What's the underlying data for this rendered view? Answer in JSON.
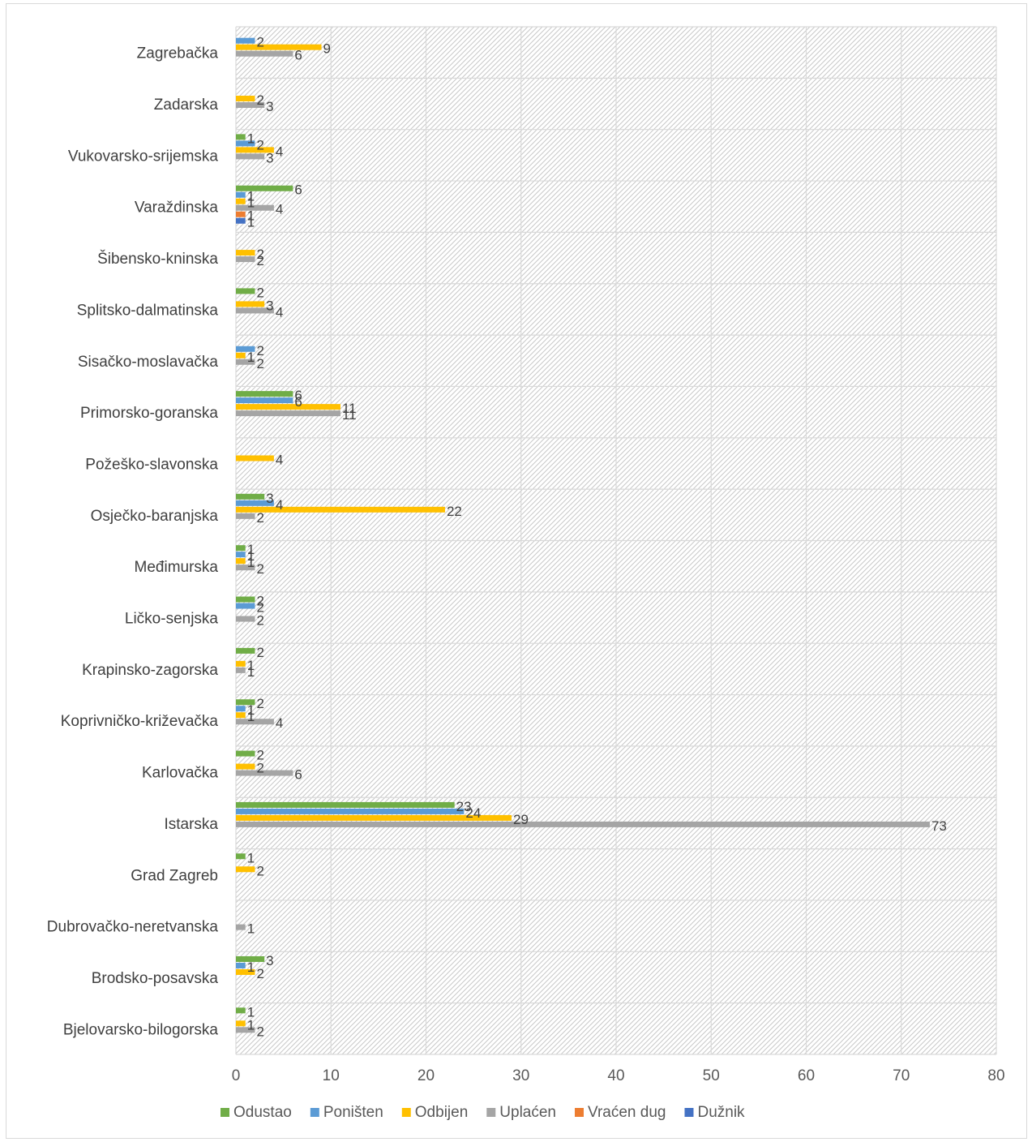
{
  "chart_data": {
    "type": "bar",
    "orientation": "horizontal",
    "title": "",
    "xlabel": "",
    "ylabel": "",
    "xlim": [
      0,
      80
    ],
    "x_ticks": [
      "0",
      "10",
      "20",
      "30",
      "40",
      "50",
      "60",
      "70",
      "80"
    ],
    "grid": true,
    "legend_position": "bottom",
    "categories": [
      "Zagrebačka",
      "Zadarska",
      "Vukovarsko-srijemska",
      "Varaždinska",
      "Šibensko-kninska",
      "Splitsko-dalmatinska",
      "Sisačko-moslavačka",
      "Primorsko-goranska",
      "Požeško-slavonska",
      "Osječko-baranjska",
      "Međimurska",
      "Ličko-senjska",
      "Krapinsko-zagorska",
      "Koprivničko-križevačka",
      "Karlovačka",
      "Istarska",
      "Grad Zagreb",
      "Dubrovačko-neretvanska",
      "Brodsko-posavska",
      "Bjelovarsko-bilogorska"
    ],
    "series": [
      {
        "name": "Odustao",
        "color": "#70ad47",
        "values": [
          null,
          null,
          1,
          6,
          null,
          2,
          null,
          6,
          null,
          3,
          1,
          2,
          2,
          2,
          2,
          23,
          1,
          null,
          3,
          1
        ]
      },
      {
        "name": "Poništen",
        "color": "#5b9bd5",
        "values": [
          2,
          null,
          2,
          1,
          null,
          null,
          2,
          6,
          null,
          4,
          1,
          2,
          null,
          1,
          null,
          24,
          null,
          null,
          1,
          null
        ]
      },
      {
        "name": "Odbijen",
        "color": "#ffc000",
        "values": [
          9,
          2,
          4,
          1,
          2,
          3,
          1,
          11,
          4,
          22,
          1,
          null,
          1,
          1,
          2,
          29,
          2,
          null,
          2,
          1
        ]
      },
      {
        "name": "Uplaćen",
        "color": "#a5a5a5",
        "values": [
          6,
          3,
          3,
          4,
          2,
          4,
          2,
          11,
          null,
          2,
          2,
          2,
          1,
          4,
          6,
          73,
          null,
          1,
          null,
          2
        ]
      },
      {
        "name": "Vraćen dug",
        "color": "#ed7d31",
        "values": [
          null,
          null,
          null,
          1,
          null,
          null,
          null,
          null,
          null,
          null,
          null,
          null,
          null,
          null,
          null,
          null,
          null,
          null,
          null,
          null
        ]
      },
      {
        "name": "Dužnik",
        "color": "#4472c4",
        "values": [
          null,
          null,
          null,
          1,
          null,
          null,
          null,
          null,
          null,
          null,
          null,
          null,
          null,
          null,
          null,
          null,
          null,
          null,
          null,
          null
        ]
      }
    ]
  }
}
